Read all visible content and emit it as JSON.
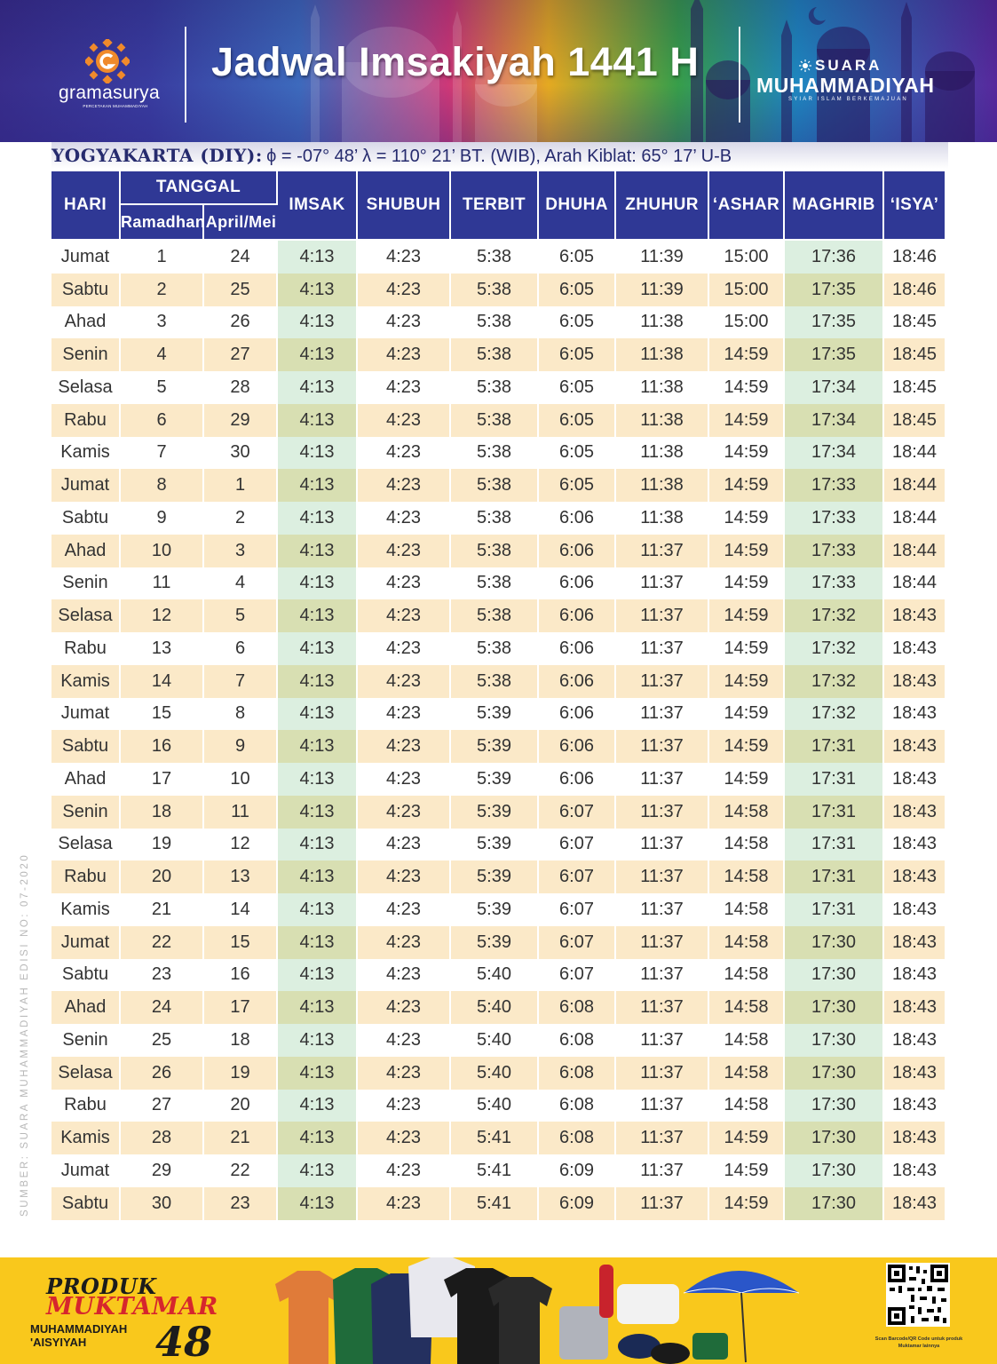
{
  "header": {
    "title": "Jadwal Imsakiyah 1441 H",
    "publisher_left": {
      "name": "gramasurya",
      "tagline": "PERCETAKAN MUHAMMADIYAH"
    },
    "publisher_right": {
      "line1": "SUARA",
      "line2": "MUHAMMADIYAH",
      "tagline": "SYIAR ISLAM BERKEMAJUAN"
    }
  },
  "location": {
    "city": "YOGYAKARTA (DIY):",
    "coords": "ϕ = -07° 48’ λ = 110° 21’  BT. (WIB), Arah Kiblat: 65° 17’ U-B"
  },
  "table": {
    "headers": {
      "hari": "HARI",
      "tanggal": "TANGGAL",
      "ramadhan": "Ramadhan",
      "april_mei": "April/Mei",
      "imsak": "IMSAK",
      "shubuh": "SHUBUH",
      "terbit": "TERBIT",
      "dhuha": "DHUHA",
      "zhuhur": "ZHUHUR",
      "ashar": "‘ASHAR",
      "maghrib": "MAGHRIB",
      "isya": "‘ISYA’"
    },
    "rows": [
      [
        "Jumat",
        "1",
        "24",
        "4:13",
        "4:23",
        "5:38",
        "6:05",
        "11:39",
        "15:00",
        "17:36",
        "18:46"
      ],
      [
        "Sabtu",
        "2",
        "25",
        "4:13",
        "4:23",
        "5:38",
        "6:05",
        "11:39",
        "15:00",
        "17:35",
        "18:46"
      ],
      [
        "Ahad",
        "3",
        "26",
        "4:13",
        "4:23",
        "5:38",
        "6:05",
        "11:38",
        "15:00",
        "17:35",
        "18:45"
      ],
      [
        "Senin",
        "4",
        "27",
        "4:13",
        "4:23",
        "5:38",
        "6:05",
        "11:38",
        "14:59",
        "17:35",
        "18:45"
      ],
      [
        "Selasa",
        "5",
        "28",
        "4:13",
        "4:23",
        "5:38",
        "6:05",
        "11:38",
        "14:59",
        "17:34",
        "18:45"
      ],
      [
        "Rabu",
        "6",
        "29",
        "4:13",
        "4:23",
        "5:38",
        "6:05",
        "11:38",
        "14:59",
        "17:34",
        "18:45"
      ],
      [
        "Kamis",
        "7",
        "30",
        "4:13",
        "4:23",
        "5:38",
        "6:05",
        "11:38",
        "14:59",
        "17:34",
        "18:44"
      ],
      [
        "Jumat",
        "8",
        "1",
        "4:13",
        "4:23",
        "5:38",
        "6:05",
        "11:38",
        "14:59",
        "17:33",
        "18:44"
      ],
      [
        "Sabtu",
        "9",
        "2",
        "4:13",
        "4:23",
        "5:38",
        "6:06",
        "11:38",
        "14:59",
        "17:33",
        "18:44"
      ],
      [
        "Ahad",
        "10",
        "3",
        "4:13",
        "4:23",
        "5:38",
        "6:06",
        "11:37",
        "14:59",
        "17:33",
        "18:44"
      ],
      [
        "Senin",
        "11",
        "4",
        "4:13",
        "4:23",
        "5:38",
        "6:06",
        "11:37",
        "14:59",
        "17:33",
        "18:44"
      ],
      [
        "Selasa",
        "12",
        "5",
        "4:13",
        "4:23",
        "5:38",
        "6:06",
        "11:37",
        "14:59",
        "17:32",
        "18:43"
      ],
      [
        "Rabu",
        "13",
        "6",
        "4:13",
        "4:23",
        "5:38",
        "6:06",
        "11:37",
        "14:59",
        "17:32",
        "18:43"
      ],
      [
        "Kamis",
        "14",
        "7",
        "4:13",
        "4:23",
        "5:38",
        "6:06",
        "11:37",
        "14:59",
        "17:32",
        "18:43"
      ],
      [
        "Jumat",
        "15",
        "8",
        "4:13",
        "4:23",
        "5:39",
        "6:06",
        "11:37",
        "14:59",
        "17:32",
        "18:43"
      ],
      [
        "Sabtu",
        "16",
        "9",
        "4:13",
        "4:23",
        "5:39",
        "6:06",
        "11:37",
        "14:59",
        "17:31",
        "18:43"
      ],
      [
        "Ahad",
        "17",
        "10",
        "4:13",
        "4:23",
        "5:39",
        "6:06",
        "11:37",
        "14:59",
        "17:31",
        "18:43"
      ],
      [
        "Senin",
        "18",
        "11",
        "4:13",
        "4:23",
        "5:39",
        "6:07",
        "11:37",
        "14:58",
        "17:31",
        "18:43"
      ],
      [
        "Selasa",
        "19",
        "12",
        "4:13",
        "4:23",
        "5:39",
        "6:07",
        "11:37",
        "14:58",
        "17:31",
        "18:43"
      ],
      [
        "Rabu",
        "20",
        "13",
        "4:13",
        "4:23",
        "5:39",
        "6:07",
        "11:37",
        "14:58",
        "17:31",
        "18:43"
      ],
      [
        "Kamis",
        "21",
        "14",
        "4:13",
        "4:23",
        "5:39",
        "6:07",
        "11:37",
        "14:58",
        "17:31",
        "18:43"
      ],
      [
        "Jumat",
        "22",
        "15",
        "4:13",
        "4:23",
        "5:39",
        "6:07",
        "11:37",
        "14:58",
        "17:30",
        "18:43"
      ],
      [
        "Sabtu",
        "23",
        "16",
        "4:13",
        "4:23",
        "5:40",
        "6:07",
        "11:37",
        "14:58",
        "17:30",
        "18:43"
      ],
      [
        "Ahad",
        "24",
        "17",
        "4:13",
        "4:23",
        "5:40",
        "6:08",
        "11:37",
        "14:58",
        "17:30",
        "18:43"
      ],
      [
        "Senin",
        "25",
        "18",
        "4:13",
        "4:23",
        "5:40",
        "6:08",
        "11:37",
        "14:58",
        "17:30",
        "18:43"
      ],
      [
        "Selasa",
        "26",
        "19",
        "4:13",
        "4:23",
        "5:40",
        "6:08",
        "11:37",
        "14:58",
        "17:30",
        "18:43"
      ],
      [
        "Rabu",
        "27",
        "20",
        "4:13",
        "4:23",
        "5:40",
        "6:08",
        "11:37",
        "14:58",
        "17:30",
        "18:43"
      ],
      [
        "Kamis",
        "28",
        "21",
        "4:13",
        "4:23",
        "5:41",
        "6:08",
        "11:37",
        "14:59",
        "17:30",
        "18:43"
      ],
      [
        "Jumat",
        "29",
        "22",
        "4:13",
        "4:23",
        "5:41",
        "6:09",
        "11:37",
        "14:59",
        "17:30",
        "18:43"
      ],
      [
        "Sabtu",
        "30",
        "23",
        "4:13",
        "4:23",
        "5:41",
        "6:09",
        "11:37",
        "14:59",
        "17:30",
        "18:43"
      ]
    ]
  },
  "source": "SUMBER: SUARA MUHAMMADIYAH EDISI NO: 07-2020",
  "banner": {
    "line1": "PRODUK",
    "line2": "MUKTAMAR",
    "line3": "MUHAMMADIYAH",
    "line4": "'AISYIYAH",
    "number": "48",
    "qr_caption": "Scan Barcode/QR Code untuk produk Muktamar lainnya"
  },
  "colors": {
    "header_cell": "#2f3895",
    "row_alt": "#fbe9c8",
    "highlight_col": "#dcefe0",
    "highlight_col_alt": "#d8dfb2",
    "banner": "#f9c81c",
    "accent_red": "#d6262d"
  },
  "icons": [
    "gramasurya-logo-icon",
    "sun-emblem-icon",
    "mosque-silhouette-icon",
    "qr-code-icon"
  ]
}
